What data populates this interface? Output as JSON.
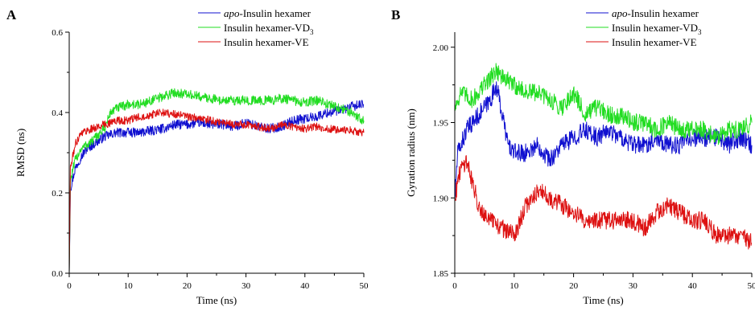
{
  "chart_data": [
    {
      "panel_label": "A",
      "type": "line",
      "xlabel": "Time (ns)",
      "ylabel": "RMSD (ns)",
      "xlim": [
        0,
        50
      ],
      "ylim": [
        0,
        0.6
      ],
      "xticks": [
        "0",
        "10",
        "20",
        "30",
        "40",
        "50"
      ],
      "yticks": [
        "0.0",
        "0.2",
        "0.4",
        "0.6"
      ],
      "grid": false,
      "legend_position": "top-right",
      "series": [
        {
          "legend_prefix": "apo",
          "legend_suffix": "-Insulin hexamer",
          "color": "#1010d0",
          "noise": 0.012,
          "points": [
            [
              0,
              0
            ],
            [
              0.2,
              0.21
            ],
            [
              1,
              0.26
            ],
            [
              2,
              0.29
            ],
            [
              3,
              0.31
            ],
            [
              5,
              0.33
            ],
            [
              6,
              0.34
            ],
            [
              8,
              0.35
            ],
            [
              10,
              0.35
            ],
            [
              12,
              0.35
            ],
            [
              14,
              0.355
            ],
            [
              16,
              0.36
            ],
            [
              18,
              0.37
            ],
            [
              20,
              0.37
            ],
            [
              22,
              0.375
            ],
            [
              24,
              0.37
            ],
            [
              26,
              0.37
            ],
            [
              28,
              0.365
            ],
            [
              30,
              0.375
            ],
            [
              32,
              0.365
            ],
            [
              34,
              0.36
            ],
            [
              36,
              0.365
            ],
            [
              38,
              0.38
            ],
            [
              40,
              0.385
            ],
            [
              42,
              0.39
            ],
            [
              44,
              0.4
            ],
            [
              46,
              0.405
            ],
            [
              48,
              0.415
            ],
            [
              50,
              0.42
            ]
          ]
        },
        {
          "legend_prefix": "",
          "legend_suffix": "Insulin hexamer-VD",
          "legend_sub": "3",
          "color": "#22dd22",
          "noise": 0.012,
          "points": [
            [
              0,
              0
            ],
            [
              0.2,
              0.23
            ],
            [
              1,
              0.28
            ],
            [
              2,
              0.31
            ],
            [
              4,
              0.33
            ],
            [
              6,
              0.36
            ],
            [
              7,
              0.4
            ],
            [
              8,
              0.41
            ],
            [
              10,
              0.42
            ],
            [
              12,
              0.42
            ],
            [
              14,
              0.43
            ],
            [
              16,
              0.44
            ],
            [
              18,
              0.45
            ],
            [
              20,
              0.445
            ],
            [
              22,
              0.44
            ],
            [
              24,
              0.435
            ],
            [
              26,
              0.43
            ],
            [
              28,
              0.43
            ],
            [
              30,
              0.43
            ],
            [
              32,
              0.43
            ],
            [
              34,
              0.43
            ],
            [
              36,
              0.435
            ],
            [
              38,
              0.43
            ],
            [
              40,
              0.425
            ],
            [
              42,
              0.43
            ],
            [
              44,
              0.42
            ],
            [
              46,
              0.41
            ],
            [
              48,
              0.4
            ],
            [
              50,
              0.38
            ]
          ]
        },
        {
          "legend_prefix": "",
          "legend_suffix": "Insulin hexamer-VE",
          "color": "#dd1111",
          "noise": 0.01,
          "points": [
            [
              0,
              0
            ],
            [
              0.2,
              0.26
            ],
            [
              1,
              0.32
            ],
            [
              2,
              0.35
            ],
            [
              4,
              0.36
            ],
            [
              6,
              0.37
            ],
            [
              8,
              0.38
            ],
            [
              10,
              0.38
            ],
            [
              12,
              0.39
            ],
            [
              14,
              0.395
            ],
            [
              16,
              0.4
            ],
            [
              18,
              0.395
            ],
            [
              20,
              0.39
            ],
            [
              22,
              0.385
            ],
            [
              24,
              0.38
            ],
            [
              26,
              0.375
            ],
            [
              28,
              0.37
            ],
            [
              30,
              0.37
            ],
            [
              32,
              0.365
            ],
            [
              34,
              0.36
            ],
            [
              36,
              0.37
            ],
            [
              38,
              0.365
            ],
            [
              40,
              0.36
            ],
            [
              42,
              0.365
            ],
            [
              44,
              0.36
            ],
            [
              46,
              0.355
            ],
            [
              48,
              0.355
            ],
            [
              50,
              0.35
            ]
          ]
        }
      ]
    },
    {
      "panel_label": "B",
      "type": "line",
      "xlabel": "Time (ns)",
      "ylabel": "Gyration radius (nm)",
      "xlim": [
        0,
        50
      ],
      "ylim": [
        1.85,
        2.01
      ],
      "xticks": [
        "0",
        "10",
        "20",
        "30",
        "40",
        "50"
      ],
      "yticks": [
        "1.85",
        "1.90",
        "1.95",
        "2.00"
      ],
      "grid": false,
      "legend_position": "top-right",
      "series": [
        {
          "legend_prefix": "apo",
          "legend_suffix": "-Insulin hexamer",
          "color": "#1010d0",
          "noise": 0.006,
          "points": [
            [
              0,
              1.9
            ],
            [
              0.5,
              1.93
            ],
            [
              2,
              1.945
            ],
            [
              4,
              1.955
            ],
            [
              6,
              1.965
            ],
            [
              7,
              1.975
            ],
            [
              8,
              1.955
            ],
            [
              9,
              1.935
            ],
            [
              10,
              1.93
            ],
            [
              12,
              1.93
            ],
            [
              14,
              1.935
            ],
            [
              16,
              1.925
            ],
            [
              18,
              1.935
            ],
            [
              20,
              1.94
            ],
            [
              22,
              1.945
            ],
            [
              24,
              1.94
            ],
            [
              26,
              1.945
            ],
            [
              28,
              1.94
            ],
            [
              30,
              1.935
            ],
            [
              32,
              1.935
            ],
            [
              34,
              1.94
            ],
            [
              36,
              1.935
            ],
            [
              38,
              1.935
            ],
            [
              40,
              1.94
            ],
            [
              42,
              1.94
            ],
            [
              44,
              1.94
            ],
            [
              46,
              1.935
            ],
            [
              48,
              1.94
            ],
            [
              50,
              1.935
            ]
          ]
        },
        {
          "legend_prefix": "",
          "legend_suffix": "Insulin hexamer-VD",
          "legend_sub": "3",
          "color": "#22dd22",
          "noise": 0.006,
          "points": [
            [
              0,
              1.96
            ],
            [
              1,
              1.97
            ],
            [
              3,
              1.965
            ],
            [
              5,
              1.975
            ],
            [
              7,
              1.985
            ],
            [
              8,
              1.98
            ],
            [
              10,
              1.975
            ],
            [
              12,
              1.97
            ],
            [
              14,
              1.97
            ],
            [
              16,
              1.965
            ],
            [
              18,
              1.96
            ],
            [
              20,
              1.97
            ],
            [
              22,
              1.955
            ],
            [
              24,
              1.96
            ],
            [
              26,
              1.955
            ],
            [
              28,
              1.955
            ],
            [
              30,
              1.95
            ],
            [
              32,
              1.95
            ],
            [
              34,
              1.945
            ],
            [
              36,
              1.95
            ],
            [
              38,
              1.945
            ],
            [
              40,
              1.945
            ],
            [
              42,
              1.945
            ],
            [
              44,
              1.94
            ],
            [
              46,
              1.945
            ],
            [
              48,
              1.945
            ],
            [
              50,
              1.95
            ]
          ]
        },
        {
          "legend_prefix": "",
          "legend_suffix": "Insulin hexamer-VE",
          "color": "#dd1111",
          "noise": 0.006,
          "points": [
            [
              0,
              1.9
            ],
            [
              1,
              1.92
            ],
            [
              2,
              1.925
            ],
            [
              3,
              1.91
            ],
            [
              4,
              1.895
            ],
            [
              6,
              1.885
            ],
            [
              8,
              1.88
            ],
            [
              10,
              1.875
            ],
            [
              12,
              1.895
            ],
            [
              14,
              1.905
            ],
            [
              16,
              1.9
            ],
            [
              18,
              1.895
            ],
            [
              20,
              1.89
            ],
            [
              22,
              1.885
            ],
            [
              24,
              1.885
            ],
            [
              26,
              1.885
            ],
            [
              28,
              1.885
            ],
            [
              30,
              1.885
            ],
            [
              32,
              1.88
            ],
            [
              34,
              1.89
            ],
            [
              36,
              1.895
            ],
            [
              38,
              1.89
            ],
            [
              40,
              1.885
            ],
            [
              42,
              1.885
            ],
            [
              44,
              1.875
            ],
            [
              46,
              1.875
            ],
            [
              48,
              1.875
            ],
            [
              50,
              1.87
            ]
          ]
        }
      ]
    }
  ]
}
